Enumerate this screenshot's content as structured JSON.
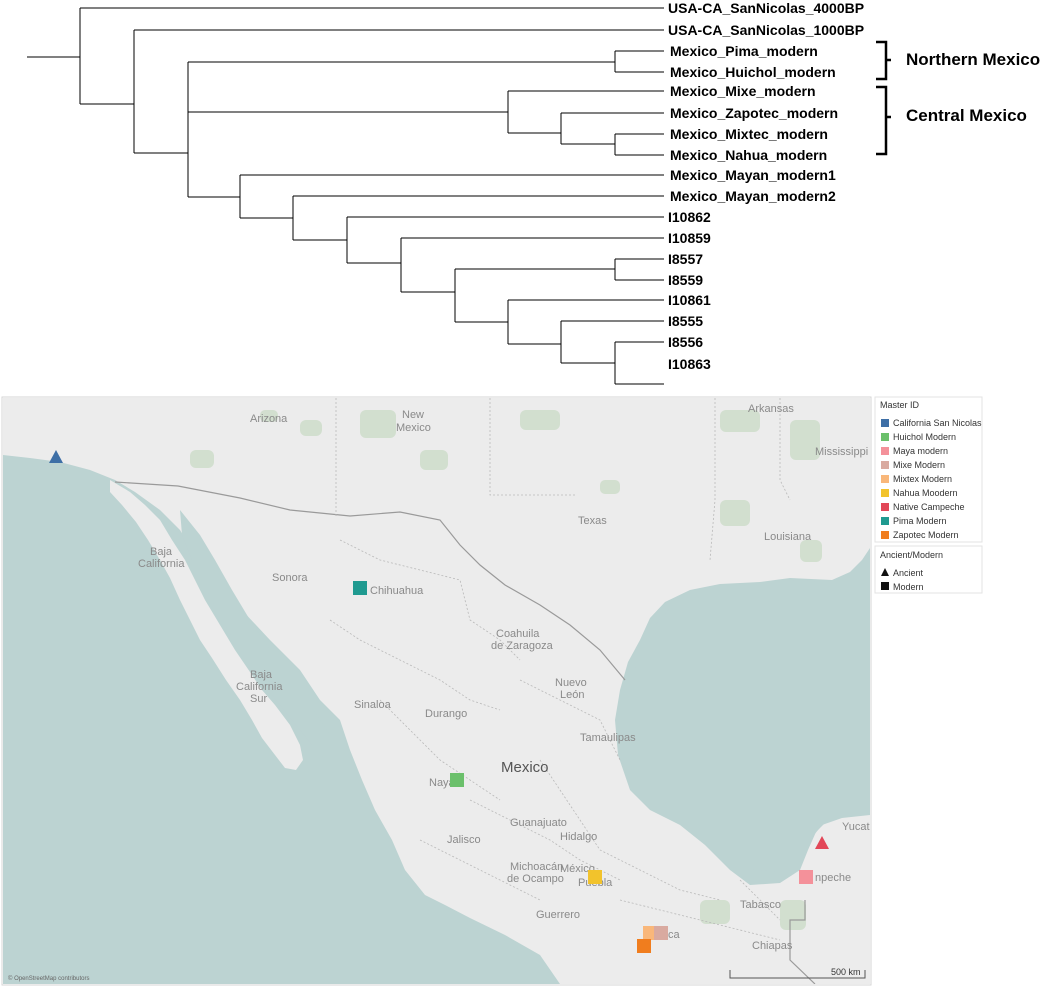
{
  "tree": {
    "tips": [
      "USA-CA_SanNicolas_4000BP",
      "USA-CA_SanNicolas_1000BP",
      "Mexico_Pima_modern",
      "Mexico_Huichol_modern",
      "Mexico_Mixe_modern",
      "Mexico_Zapotec_modern",
      "Mexico_Mixtec_modern",
      "Mexico_Nahua_modern",
      "Mexico_Mayan_modern1",
      "Mexico_Mayan_modern2",
      "I10862",
      "I10859",
      "I8557",
      "I8559",
      "I10861",
      "I8555",
      "I8556",
      "I10863"
    ],
    "groups": [
      {
        "label": "Northern Mexico"
      },
      {
        "label": "Central Mexico"
      }
    ]
  },
  "map": {
    "country_label": "Mexico",
    "places": [
      "Arizona",
      "New",
      "Mexico",
      "Arkansas",
      "Mississippi",
      "Texas",
      "Louisiana",
      "Baja",
      "California",
      "Sonora",
      "Chihuahua",
      "Baja",
      "California",
      "Sur",
      "Coahuila",
      "de Zaragoza",
      "Nuevo",
      "León",
      "Sinaloa",
      "Durango",
      "Tamaulipas",
      "Nayarit",
      "Guanajuato",
      "Hidalgo",
      "Jalisco",
      "Michoacán",
      "de Ocampo",
      "México",
      "Puebla",
      "Guerrero",
      "Tabasco",
      "Chiapas",
      "Yucat",
      "npeche",
      "ca"
    ],
    "attribution": "© OpenStreetMap contributors",
    "scale_label": "500 km",
    "colors": {
      "water": "#bcd3d2",
      "land": "#ececec",
      "park": "#d2dfcf"
    },
    "legend": {
      "title": "Master ID",
      "items": [
        {
          "label": "California San Nicolas",
          "color": "#3e6fa6"
        },
        {
          "label": "Huichol Modern",
          "color": "#6bc06b"
        },
        {
          "label": "Maya modern",
          "color": "#f4919a"
        },
        {
          "label": "Mixe Modern",
          "color": "#d9aaa0"
        },
        {
          "label": "Mixtex Modern",
          "color": "#f9b77a"
        },
        {
          "label": "Nahua Moodern",
          "color": "#f2c32c"
        },
        {
          "label": "Native Campeche",
          "color": "#e24758"
        },
        {
          "label": "Pima Modern",
          "color": "#1f9a90"
        },
        {
          "label": "Zapotec Modern",
          "color": "#f07d1e"
        }
      ]
    },
    "shape_legend": {
      "title": "Ancient/Modern",
      "items": [
        {
          "label": "Ancient",
          "shape": "triangle"
        },
        {
          "label": "Modern",
          "shape": "square"
        }
      ]
    },
    "markers": [
      {
        "group": "California San Nicolas",
        "shape": "triangle",
        "color": "#3e6fa6"
      },
      {
        "group": "Pima Modern",
        "shape": "square",
        "color": "#1f9a90"
      },
      {
        "group": "Huichol Modern",
        "shape": "square",
        "color": "#6bc06b"
      },
      {
        "group": "Nahua Moodern",
        "shape": "square",
        "color": "#f2c32c"
      },
      {
        "group": "Mixtex Modern",
        "shape": "square",
        "color": "#f9b77a"
      },
      {
        "group": "Mixe Modern",
        "shape": "square",
        "color": "#d9aaa0"
      },
      {
        "group": "Zapotec Modern",
        "shape": "square",
        "color": "#f07d1e"
      },
      {
        "group": "Native Campeche",
        "shape": "triangle",
        "color": "#e24758"
      },
      {
        "group": "Maya modern",
        "shape": "square",
        "color": "#f4919a"
      }
    ]
  }
}
